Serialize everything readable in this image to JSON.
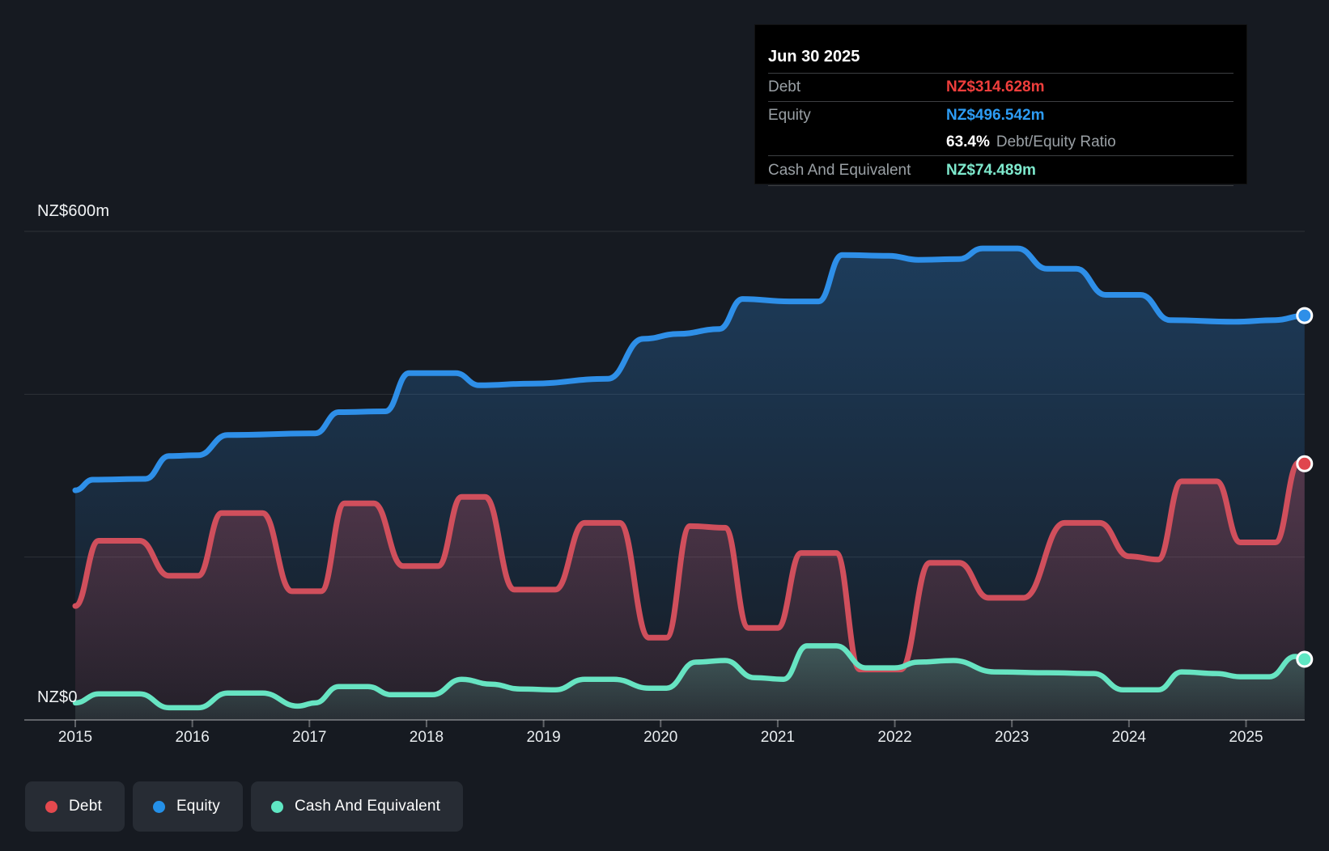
{
  "tooltip": {
    "date": "Jun 30 2025",
    "debt": {
      "label": "Debt",
      "value": "NZ$314.628m"
    },
    "equity": {
      "label": "Equity",
      "value": "NZ$496.542m"
    },
    "ratio": {
      "value": "63.4%",
      "label": "Debt/Equity Ratio"
    },
    "cash": {
      "label": "Cash And Equivalent",
      "value": "NZ$74.489m"
    }
  },
  "axis": {
    "y_top_label": "NZ$600m",
    "y_zero_label": "NZ$0",
    "years": [
      "2015",
      "2016",
      "2017",
      "2018",
      "2019",
      "2020",
      "2021",
      "2022",
      "2023",
      "2024",
      "2025"
    ]
  },
  "legend": {
    "items": [
      {
        "label": "Debt",
        "color": "#e4494e"
      },
      {
        "label": "Equity",
        "color": "#2490e8"
      },
      {
        "label": "Cash And Equivalent",
        "color": "#5fe7c3"
      }
    ]
  },
  "colors": {
    "background": "#161a21",
    "gridline": "rgba(255,255,255,0.10)",
    "axis_line": "rgba(255,255,255,0.32)",
    "tooltip_debt": "#ef3e3c",
    "tooltip_equity": "#2d9cf4",
    "tooltip_cash": "#7ee9cd",
    "equity_line": "#2e8fe8",
    "debt_line": "#d04f5c",
    "cash_line": "#67e4c2"
  },
  "chart_data": {
    "type": "area",
    "title": "Debt to Equity History and Analysis",
    "x_axis": {
      "ticks": [
        2015,
        2016,
        2017,
        2018,
        2019,
        2020,
        2021,
        2022,
        2023,
        2024,
        2025
      ],
      "range": [
        2015,
        2025.5
      ]
    },
    "y_axis": {
      "unit": "NZ$m",
      "range": [
        0,
        600
      ],
      "gridlines": [
        0,
        200,
        400,
        600
      ],
      "labeled_gridlines": [
        "NZ$600m",
        "NZ$0"
      ]
    },
    "legend_position": "bottom-left",
    "series": [
      {
        "name": "Equity",
        "color": "#2e8fe8",
        "points": [
          [
            2015.0,
            282
          ],
          [
            2015.15,
            295
          ],
          [
            2015.6,
            296
          ],
          [
            2015.8,
            324
          ],
          [
            2016.05,
            325
          ],
          [
            2016.3,
            350
          ],
          [
            2017.05,
            352
          ],
          [
            2017.25,
            378
          ],
          [
            2017.65,
            379
          ],
          [
            2017.85,
            426
          ],
          [
            2018.25,
            426
          ],
          [
            2018.45,
            411
          ],
          [
            2018.9,
            413
          ],
          [
            2019.55,
            419
          ],
          [
            2019.85,
            468
          ],
          [
            2020.15,
            474
          ],
          [
            2020.5,
            480
          ],
          [
            2020.7,
            517
          ],
          [
            2021.1,
            514
          ],
          [
            2021.35,
            514
          ],
          [
            2021.55,
            571
          ],
          [
            2021.95,
            570
          ],
          [
            2022.2,
            565
          ],
          [
            2022.55,
            566
          ],
          [
            2022.75,
            579
          ],
          [
            2023.05,
            579
          ],
          [
            2023.3,
            554
          ],
          [
            2023.55,
            554
          ],
          [
            2023.8,
            522
          ],
          [
            2024.1,
            522
          ],
          [
            2024.35,
            491
          ],
          [
            2024.9,
            489
          ],
          [
            2025.25,
            491
          ],
          [
            2025.5,
            496.542
          ]
        ]
      },
      {
        "name": "Debt",
        "color": "#d04f5c",
        "points": [
          [
            2015.0,
            140
          ],
          [
            2015.2,
            220
          ],
          [
            2015.55,
            220
          ],
          [
            2015.8,
            177
          ],
          [
            2016.05,
            177
          ],
          [
            2016.25,
            254
          ],
          [
            2016.6,
            254
          ],
          [
            2016.85,
            158
          ],
          [
            2017.1,
            158
          ],
          [
            2017.3,
            266
          ],
          [
            2017.55,
            266
          ],
          [
            2017.8,
            189
          ],
          [
            2018.1,
            189
          ],
          [
            2018.3,
            274
          ],
          [
            2018.5,
            274
          ],
          [
            2018.75,
            160
          ],
          [
            2019.1,
            160
          ],
          [
            2019.35,
            242
          ],
          [
            2019.65,
            242
          ],
          [
            2019.9,
            101
          ],
          [
            2020.05,
            101
          ],
          [
            2020.25,
            238
          ],
          [
            2020.55,
            236
          ],
          [
            2020.75,
            113
          ],
          [
            2021.0,
            113
          ],
          [
            2021.2,
            205
          ],
          [
            2021.5,
            205
          ],
          [
            2021.7,
            62
          ],
          [
            2022.05,
            62
          ],
          [
            2022.3,
            193
          ],
          [
            2022.55,
            193
          ],
          [
            2022.8,
            150
          ],
          [
            2023.1,
            150
          ],
          [
            2023.45,
            242
          ],
          [
            2023.75,
            242
          ],
          [
            2024.0,
            201
          ],
          [
            2024.25,
            197
          ],
          [
            2024.45,
            293
          ],
          [
            2024.75,
            293
          ],
          [
            2024.95,
            218
          ],
          [
            2025.25,
            218
          ],
          [
            2025.45,
            316
          ],
          [
            2025.5,
            314.628
          ]
        ]
      },
      {
        "name": "Cash And Equivalent",
        "color": "#67e4c2",
        "points": [
          [
            2015.0,
            21
          ],
          [
            2015.2,
            32
          ],
          [
            2015.55,
            32
          ],
          [
            2015.8,
            15
          ],
          [
            2016.05,
            15
          ],
          [
            2016.3,
            33
          ],
          [
            2016.6,
            33
          ],
          [
            2016.9,
            17
          ],
          [
            2017.05,
            21
          ],
          [
            2017.25,
            41
          ],
          [
            2017.5,
            41
          ],
          [
            2017.7,
            31
          ],
          [
            2018.05,
            31
          ],
          [
            2018.3,
            50
          ],
          [
            2018.55,
            44
          ],
          [
            2018.8,
            38
          ],
          [
            2019.1,
            37
          ],
          [
            2019.35,
            50
          ],
          [
            2019.6,
            50
          ],
          [
            2019.9,
            39
          ],
          [
            2020.05,
            39
          ],
          [
            2020.3,
            71
          ],
          [
            2020.55,
            73
          ],
          [
            2020.8,
            52
          ],
          [
            2021.05,
            50
          ],
          [
            2021.25,
            91
          ],
          [
            2021.5,
            91
          ],
          [
            2021.75,
            64
          ],
          [
            2022.0,
            64
          ],
          [
            2022.2,
            71
          ],
          [
            2022.5,
            73
          ],
          [
            2022.85,
            59
          ],
          [
            2023.3,
            58
          ],
          [
            2023.7,
            57
          ],
          [
            2023.95,
            37
          ],
          [
            2024.25,
            37
          ],
          [
            2024.45,
            59
          ],
          [
            2024.75,
            57
          ],
          [
            2024.95,
            53
          ],
          [
            2025.2,
            53
          ],
          [
            2025.42,
            78
          ],
          [
            2025.5,
            74.489
          ]
        ]
      }
    ],
    "end_markers": {
      "date": "Jun 30 2025",
      "Equity": 496.542,
      "Debt": 314.628,
      "Cash And Equivalent": 74.489
    }
  }
}
